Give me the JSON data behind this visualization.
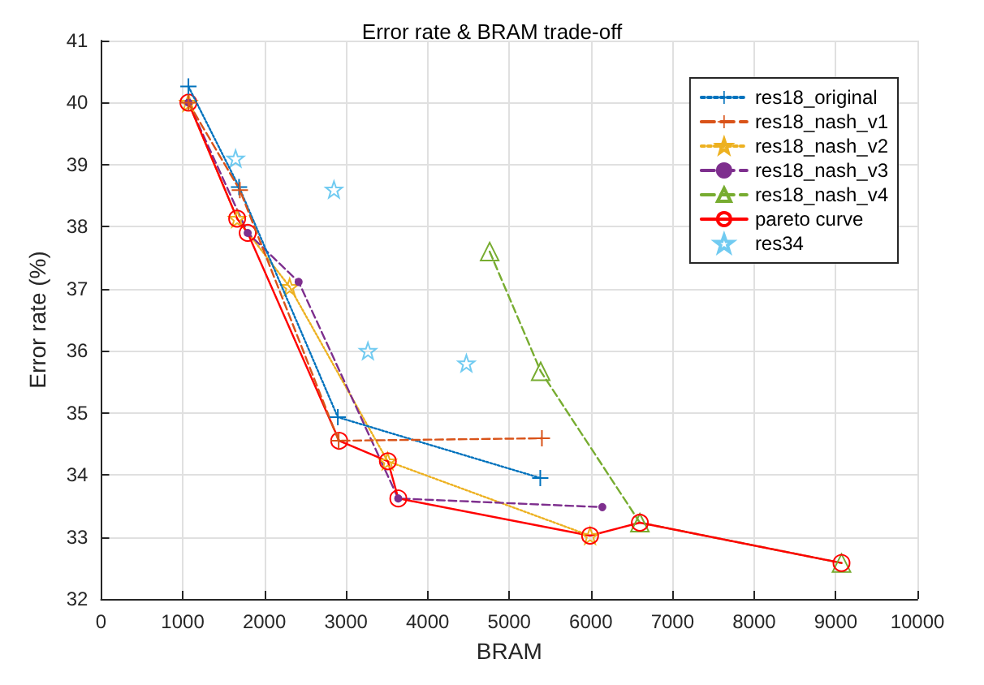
{
  "chart_data": {
    "type": "line",
    "title": "Error rate & BRAM trade-off",
    "xlabel": "BRAM",
    "ylabel": "Error rate (%)",
    "xlim": [
      0,
      10000
    ],
    "xticks": [
      0,
      1000,
      2000,
      3000,
      4000,
      5000,
      6000,
      7000,
      8000,
      9000,
      10000
    ],
    "ylim": [
      32,
      41
    ],
    "yticks": [
      32,
      33,
      34,
      35,
      36,
      37,
      38,
      39,
      40,
      41
    ],
    "grid": true,
    "legend": "top right",
    "series": [
      {
        "name": "res18_original",
        "color": "#0072bd",
        "marker": "cross",
        "line_style": "dotted",
        "x": [
          1070,
          1690,
          2900,
          5380
        ],
        "values": [
          40.26,
          38.64,
          34.93,
          33.95
        ]
      },
      {
        "name": "res18_nash_v1",
        "color": "#d95319",
        "marker": "cross",
        "line_style": "dashed",
        "x": [
          1070,
          1700,
          2910,
          5400
        ],
        "values": [
          40.0,
          38.59,
          34.55,
          34.59
        ]
      },
      {
        "name": "res18_nash_v2",
        "color": "#edb120",
        "marker": "star",
        "line_style": "dotted",
        "x": [
          1070,
          1667,
          2310,
          3510,
          5990
        ],
        "values": [
          40.0,
          38.13,
          37.03,
          34.22,
          33.02
        ]
      },
      {
        "name": "res18_nash_v3",
        "color": "#7e2f8e",
        "marker": "circle",
        "line_style": "dashed",
        "x": [
          1070,
          1796,
          2420,
          3640,
          6140
        ],
        "values": [
          40.0,
          37.9,
          37.11,
          33.62,
          33.48
        ]
      },
      {
        "name": "res18_nash_v4",
        "color": "#77ac30",
        "marker": "triangle",
        "line_style": "dashed",
        "x": [
          4760,
          5385,
          6600,
          9070
        ],
        "values": [
          37.6,
          35.67,
          33.23,
          32.58
        ]
      },
      {
        "name": "pareto curve",
        "color": "#ff0000",
        "marker": "circle",
        "line_style": "solid",
        "x": [
          1070,
          1667,
          1796,
          2917,
          3513,
          3641,
          5990,
          6600,
          9070
        ],
        "values": [
          40.0,
          38.13,
          37.9,
          34.55,
          34.22,
          33.62,
          33.02,
          33.23,
          32.58
        ]
      },
      {
        "name": "res34",
        "type": "scatter",
        "color": "#4dbeee",
        "marker": "star",
        "x": [
          1648,
          2853,
          3269,
          4475
        ],
        "values": [
          39.1,
          38.6,
          36.0,
          35.8
        ]
      }
    ]
  }
}
